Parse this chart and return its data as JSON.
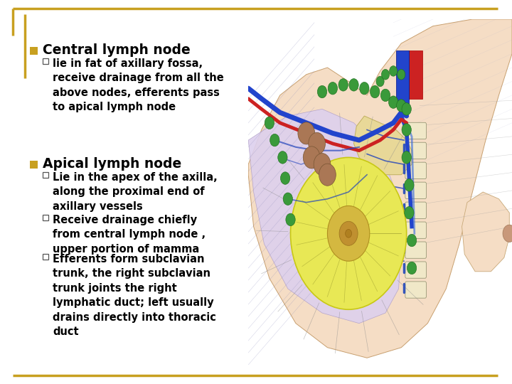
{
  "background_color": "#ffffff",
  "border_color": "#c8a020",
  "border_linewidth": 2.5,
  "bullet1_text": "Central lymph node",
  "bullet1_marker_color": "#c8a020",
  "bullet1_fontsize": 13.5,
  "sub_bullet1_text": "lie in fat of axillary fossa,\nreceive drainage from all the\nabove nodes, efferents pass\nto apical lymph node",
  "sub_bullet_color": "#000000",
  "sub_bullet_fontsize": 10.5,
  "bullet2_text": "Apical lymph node",
  "bullet2_marker_color": "#c8a020",
  "bullet2_fontsize": 13.5,
  "sub_bullet2a_text": "Lie in the apex of the axilla,\nalong the proximal end of\naxillary vessels",
  "sub_bullet2b_text": "Receive drainage chiefly\nfrom central lymph node ,\nupper portion of mamma",
  "sub_bullet2c_text": "Efferents form subclavian\ntrunk, the right subclavian\ntrunk joints the right\nlymphatic duct; left usually\ndrains directly into thoracic\nduct",
  "font_family": "DejaVu Sans",
  "font_weight": "bold"
}
